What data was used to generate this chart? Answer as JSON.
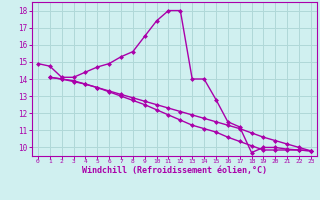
{
  "title": "",
  "xlabel": "Windchill (Refroidissement éolien,°C)",
  "ylabel": "",
  "bg_color": "#d0f0f0",
  "grid_color": "#b0d8d8",
  "line_color": "#aa00aa",
  "x_ticks": [
    0,
    1,
    2,
    3,
    4,
    5,
    6,
    7,
    8,
    9,
    10,
    11,
    12,
    13,
    14,
    15,
    16,
    17,
    18,
    19,
    20,
    21,
    22,
    23
  ],
  "y_ticks": [
    10,
    11,
    12,
    13,
    14,
    15,
    16,
    17,
    18
  ],
  "ylim": [
    9.5,
    18.5
  ],
  "xlim": [
    -0.5,
    23.5
  ],
  "line1_x": [
    0,
    1,
    2,
    3,
    4,
    5,
    6,
    7,
    8,
    9,
    10,
    11,
    12,
    13,
    14,
    15,
    16,
    17,
    18,
    19,
    20,
    21,
    22,
    23
  ],
  "line1_y": [
    14.9,
    14.75,
    14.1,
    14.1,
    14.4,
    14.7,
    14.9,
    15.3,
    15.6,
    16.5,
    17.4,
    18.0,
    18.0,
    14.0,
    14.0,
    12.8,
    11.5,
    11.2,
    9.7,
    10.0,
    10.0,
    9.9,
    9.85,
    9.8
  ],
  "line2_x": [
    1,
    2,
    3,
    4,
    5,
    6,
    7,
    8,
    9,
    10,
    11,
    12,
    13,
    14,
    15,
    16,
    17,
    18,
    19,
    20,
    21,
    22,
    23
  ],
  "line2_y": [
    14.1,
    14.0,
    13.9,
    13.7,
    13.5,
    13.3,
    13.1,
    12.9,
    12.7,
    12.5,
    12.3,
    12.1,
    11.9,
    11.7,
    11.5,
    11.3,
    11.1,
    10.85,
    10.6,
    10.4,
    10.2,
    10.0,
    9.8
  ],
  "line3_x": [
    1,
    2,
    3,
    4,
    5,
    6,
    7,
    8,
    9,
    10,
    11,
    12,
    13,
    14,
    15,
    16,
    17,
    18,
    19,
    20,
    21,
    22,
    23
  ],
  "line3_y": [
    14.1,
    14.0,
    13.85,
    13.7,
    13.5,
    13.25,
    13.0,
    12.75,
    12.5,
    12.2,
    11.9,
    11.6,
    11.3,
    11.1,
    10.9,
    10.6,
    10.35,
    10.1,
    9.85,
    9.85,
    9.85,
    9.85,
    9.8
  ],
  "marker": "D",
  "markersize": 2.5,
  "linewidth": 1.0,
  "x_tick_fontsize": 4.5,
  "y_tick_fontsize": 5.5,
  "label_fontsize": 6.0
}
